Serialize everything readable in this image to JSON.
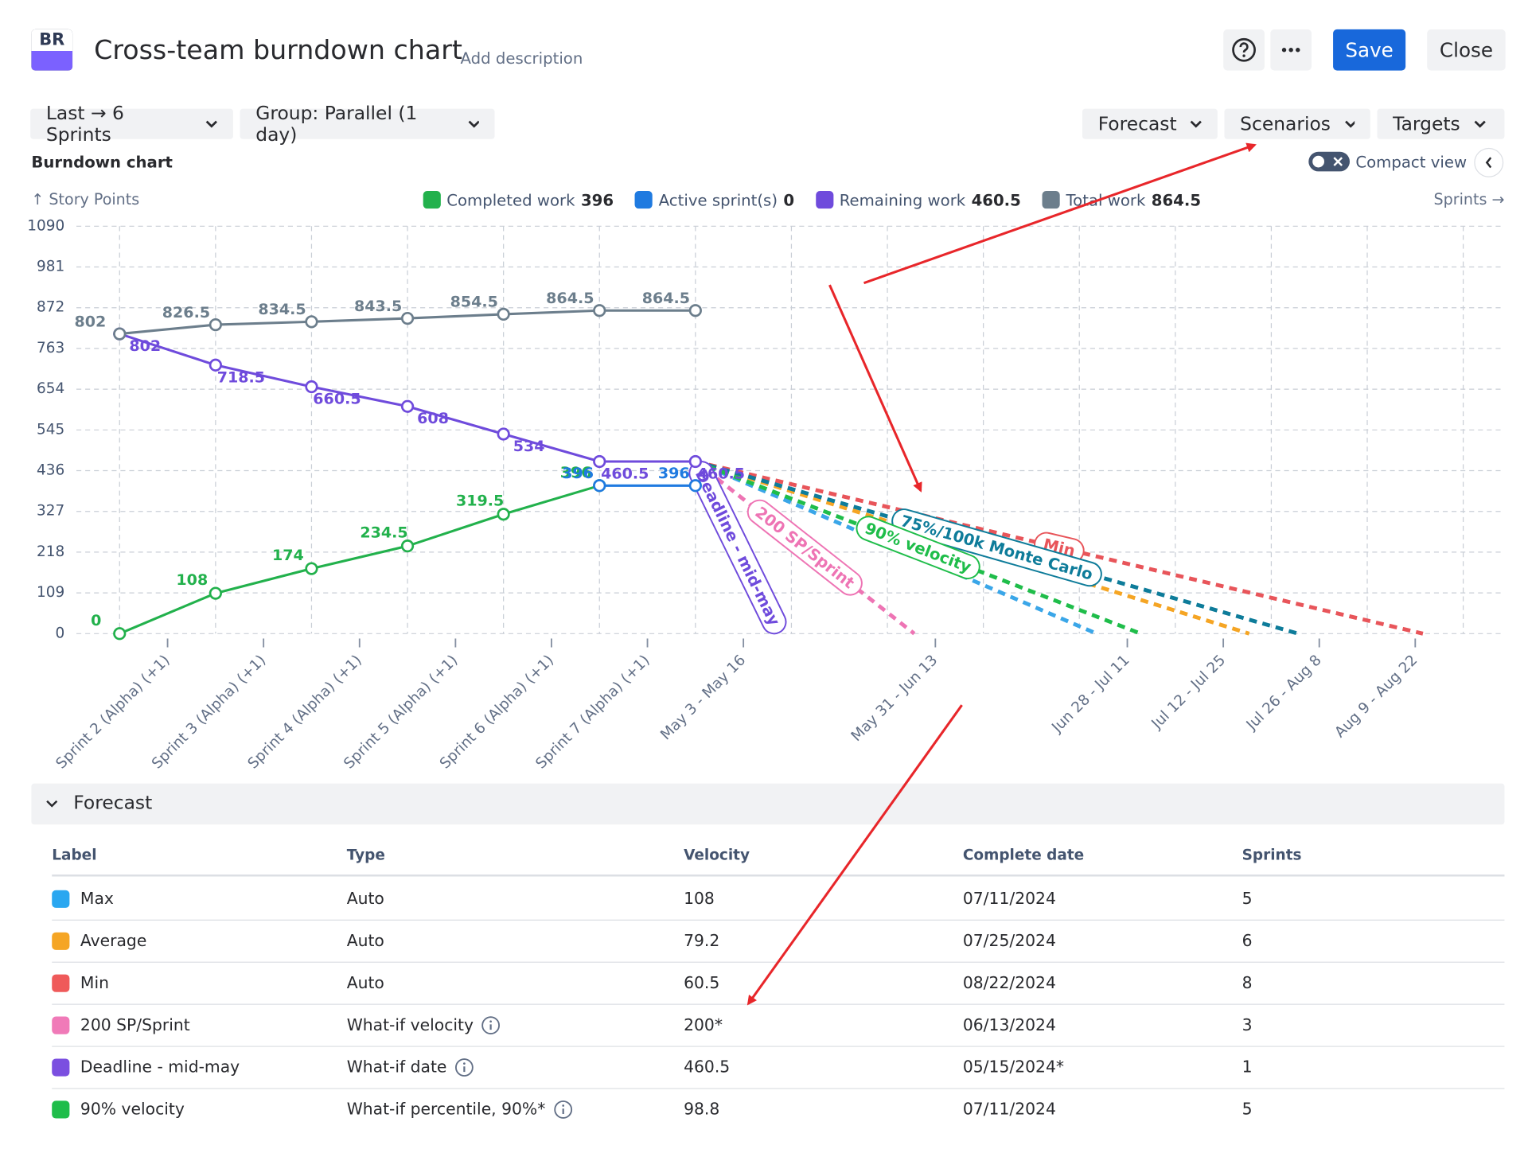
{
  "header": {
    "logo": "BR",
    "title": "Cross-team burndown chart",
    "description": "Add description",
    "save": "Save",
    "close": "Close"
  },
  "toolbar": {
    "left": [
      "Last → 6 Sprints",
      "Group: Parallel (1 day)"
    ],
    "right": [
      "Forecast",
      "Scenarios",
      "Targets"
    ],
    "compact_view": "Compact view"
  },
  "chart_data": {
    "type": "line",
    "title": "Burndown chart",
    "y_label": "↑ Story Points",
    "x_label": "Sprints →",
    "ylim": [
      0,
      1090
    ],
    "yticks": [
      0,
      109,
      218,
      327,
      436,
      545,
      654,
      763,
      872,
      981,
      1090
    ],
    "xlim": [
      -0.45,
      14.43
    ],
    "xticks": [
      {
        "value": 0.5,
        "label": "Sprint 2 (Alpha) (+1)"
      },
      {
        "value": 1.5,
        "label": "Sprint 3 (Alpha) (+1)"
      },
      {
        "value": 2.5,
        "label": "Sprint 4 (Alpha) (+1)"
      },
      {
        "value": 3.5,
        "label": "Sprint 5 (Alpha) (+1)"
      },
      {
        "value": 4.5,
        "label": "Sprint 6 (Alpha) (+1)"
      },
      {
        "value": 5.5,
        "label": "Sprint 7 (Alpha) (+1)"
      },
      {
        "value": 6.5,
        "label": "May 3 - May 16"
      },
      {
        "value": 8.5,
        "label": "May 31 - Jun 13"
      },
      {
        "value": 10.5,
        "label": "Jun 28 - Jul 11"
      },
      {
        "value": 11.5,
        "label": "Jul 12 - Jul 25"
      },
      {
        "value": 12.5,
        "label": "Jul 26 - Aug 8"
      },
      {
        "value": 13.5,
        "label": "Aug 9 - Aug 22"
      }
    ],
    "x_gridlines": [
      0,
      1,
      2,
      3,
      4,
      5,
      6,
      7,
      8,
      9,
      10,
      11,
      12,
      13,
      14
    ],
    "grid": true,
    "x": [
      0,
      1,
      2,
      3,
      4,
      5,
      6
    ],
    "series": [
      {
        "name": "Completed work",
        "total": 396,
        "color": "#22b14c",
        "values": [
          0,
          108,
          174,
          234.5,
          319.5,
          396,
          null
        ]
      },
      {
        "name": "Active sprint(s)",
        "total": 0,
        "color": "#1f7ae0",
        "values": [
          null,
          null,
          null,
          null,
          null,
          396,
          396
        ]
      },
      {
        "name": "Remaining work",
        "total": 460.5,
        "color": "#6f4bdc",
        "values": [
          802,
          718.5,
          660.5,
          608,
          534,
          460.5,
          460.5
        ]
      },
      {
        "name": "Total work",
        "total": 864.5,
        "color": "#6c7e8c",
        "values": [
          802,
          826.5,
          834.5,
          843.5,
          854.5,
          864.5,
          864.5
        ]
      }
    ],
    "forecasts": [
      {
        "color": "#3aa6e8",
        "x": [
          6,
          10.18
        ],
        "values": [
          460.5,
          0
        ]
      },
      {
        "color": "#f5a524",
        "x": [
          6,
          11.77
        ],
        "values": [
          460.5,
          0
        ]
      },
      {
        "name": "Min",
        "color": "#e8555a",
        "x": [
          6,
          13.58
        ],
        "values": [
          460.5,
          0
        ]
      },
      {
        "name": "75%/100k Monte Carlo",
        "color": "#0e7c9a",
        "x": [
          6,
          12.28
        ],
        "values": [
          460.5,
          0
        ]
      },
      {
        "name": "90% velocity",
        "color": "#1fbd4a",
        "x": [
          6,
          10.64
        ],
        "values": [
          460.5,
          0
        ]
      },
      {
        "name": "200 SP/Sprint",
        "color": "#ee74b4",
        "x": [
          6,
          8.28
        ],
        "values": [
          460.5,
          0
        ]
      },
      {
        "name": "Deadline - mid-may",
        "color": "#6f4bdc",
        "x": [
          6,
          6.88
        ],
        "values": [
          460.5,
          0
        ]
      }
    ]
  },
  "forecast_table": {
    "title": "Forecast",
    "columns": [
      "Label",
      "Type",
      "Velocity",
      "Complete date",
      "Sprints"
    ],
    "rows": [
      {
        "color": "#2aa7f0",
        "label": "Max",
        "type": "Auto",
        "velocity": 108,
        "complete_date": "07/11/2024",
        "sprints": 5
      },
      {
        "color": "#f5a524",
        "label": "Average",
        "type": "Auto",
        "velocity": 79.2,
        "complete_date": "07/25/2024",
        "sprints": 6
      },
      {
        "color": "#ef5a5a",
        "label": "Min",
        "type": "Auto",
        "velocity": 60.5,
        "complete_date": "08/22/2024",
        "sprints": 8
      },
      {
        "color": "#f07ab8",
        "label": "200 SP/Sprint",
        "type": "What-if velocity",
        "info_icon": true,
        "velocity": "200*",
        "complete_date": "06/13/2024",
        "sprints": 3
      },
      {
        "color": "#7b4fe0",
        "label": "Deadline - mid-may",
        "type": "What-if date",
        "info_icon": true,
        "velocity": 460.5,
        "complete_date": "05/15/2024*",
        "sprints": 1
      },
      {
        "color": "#1fbd4a",
        "label": "90% velocity",
        "type": "What-if percentile, 90%*",
        "info_icon": true,
        "velocity": 98.8,
        "complete_date": "07/11/2024",
        "sprints": 5
      }
    ]
  }
}
